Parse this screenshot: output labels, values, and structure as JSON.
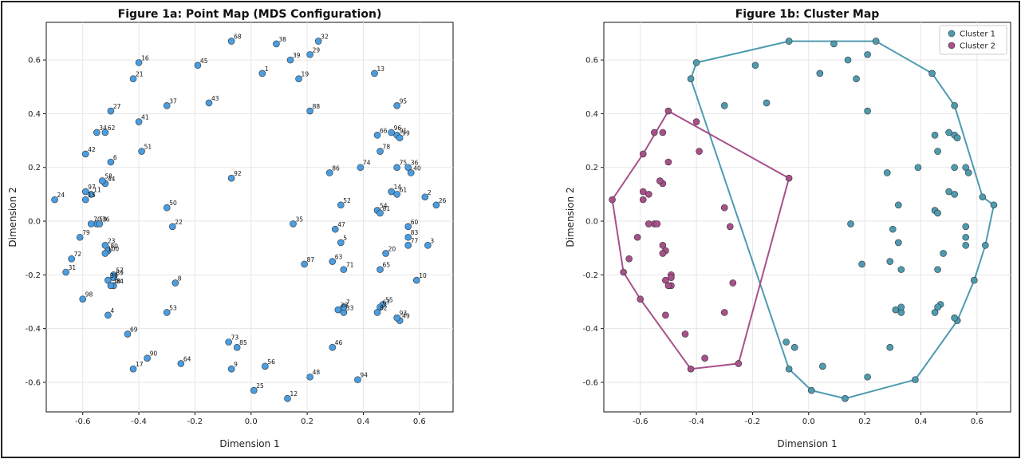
{
  "chart_data": [
    {
      "type": "scatter",
      "title": "Figure 1a: Point Map (MDS Configuration)",
      "xlabel": "Dimension 1",
      "ylabel": "Dimension 2",
      "xlim": [
        -0.73,
        0.72
      ],
      "ylim": [
        -0.71,
        0.74
      ],
      "xticks": [
        "-0.6",
        "-0.4",
        "-0.2",
        "0.0",
        "0.2",
        "0.4",
        "0.6"
      ],
      "yticks": [
        "-0.6",
        "-0.4",
        "-0.2",
        "0.0",
        "0.2",
        "0.4",
        "0.6"
      ],
      "grid": true,
      "point_color": "#4a9de0",
      "points": [
        {
          "label": "1",
          "x": 0.04,
          "y": 0.55
        },
        {
          "label": "2",
          "x": 0.62,
          "y": 0.09
        },
        {
          "label": "3",
          "x": 0.63,
          "y": -0.09
        },
        {
          "label": "4",
          "x": -0.51,
          "y": -0.35
        },
        {
          "label": "5",
          "x": 0.32,
          "y": -0.08
        },
        {
          "label": "6",
          "x": -0.5,
          "y": 0.22
        },
        {
          "label": "8",
          "x": -0.27,
          "y": -0.23
        },
        {
          "label": "9",
          "x": -0.07,
          "y": -0.55
        },
        {
          "label": "10",
          "x": 0.59,
          "y": -0.22
        },
        {
          "label": "12",
          "x": 0.13,
          "y": -0.66
        },
        {
          "label": "13",
          "x": 0.44,
          "y": 0.55
        },
        {
          "label": "14",
          "x": 0.5,
          "y": 0.11
        },
        {
          "label": "16",
          "x": -0.4,
          "y": 0.59
        },
        {
          "label": "17",
          "x": -0.42,
          "y": -0.55
        },
        {
          "label": "19",
          "x": 0.17,
          "y": 0.53
        },
        {
          "label": "20",
          "x": 0.48,
          "y": -0.12
        },
        {
          "label": "21",
          "x": -0.42,
          "y": 0.53
        },
        {
          "label": "22",
          "x": -0.28,
          "y": -0.02
        },
        {
          "label": "23",
          "x": -0.52,
          "y": -0.09
        },
        {
          "label": "24",
          "x": -0.7,
          "y": 0.08
        },
        {
          "label": "25",
          "x": 0.01,
          "y": -0.63
        },
        {
          "label": "26",
          "x": 0.66,
          "y": 0.06
        },
        {
          "label": "27",
          "x": -0.5,
          "y": 0.41
        },
        {
          "label": "29",
          "x": 0.21,
          "y": 0.62
        },
        {
          "label": "31",
          "x": -0.66,
          "y": -0.19
        },
        {
          "label": "32",
          "x": 0.24,
          "y": 0.67
        },
        {
          "label": "33",
          "x": 0.33,
          "y": -0.34
        },
        {
          "label": "34",
          "x": -0.55,
          "y": 0.33
        },
        {
          "label": "35",
          "x": 0.15,
          "y": -0.01
        },
        {
          "label": "36",
          "x": 0.56,
          "y": 0.2
        },
        {
          "label": "37",
          "x": -0.3,
          "y": 0.43
        },
        {
          "label": "38",
          "x": 0.09,
          "y": 0.66
        },
        {
          "label": "39",
          "x": 0.14,
          "y": 0.6
        },
        {
          "label": "40",
          "x": 0.57,
          "y": 0.18
        },
        {
          "label": "41",
          "x": -0.4,
          "y": 0.37
        },
        {
          "label": "42",
          "x": -0.59,
          "y": 0.25
        },
        {
          "label": "43",
          "x": -0.15,
          "y": 0.44
        },
        {
          "label": "44",
          "x": -0.52,
          "y": 0.14
        },
        {
          "label": "45",
          "x": -0.19,
          "y": 0.58
        },
        {
          "label": "46",
          "x": 0.29,
          "y": -0.47
        },
        {
          "label": "47",
          "x": 0.3,
          "y": -0.03
        },
        {
          "label": "48",
          "x": 0.21,
          "y": -0.58
        },
        {
          "label": "49",
          "x": 0.53,
          "y": -0.37
        },
        {
          "label": "50",
          "x": -0.3,
          "y": 0.05
        },
        {
          "label": "51",
          "x": -0.39,
          "y": 0.26
        },
        {
          "label": "52",
          "x": 0.32,
          "y": 0.06
        },
        {
          "label": "53",
          "x": -0.3,
          "y": -0.34
        },
        {
          "label": "54",
          "x": 0.45,
          "y": 0.04
        },
        {
          "label": "55",
          "x": 0.47,
          "y": -0.31
        },
        {
          "label": "56",
          "x": 0.05,
          "y": -0.54
        },
        {
          "label": "57",
          "x": -0.49,
          "y": -0.2
        },
        {
          "label": "58",
          "x": -0.53,
          "y": 0.15
        },
        {
          "label": "59",
          "x": -0.55,
          "y": -0.01
        },
        {
          "label": "60",
          "x": 0.56,
          "y": -0.02
        },
        {
          "label": "61",
          "x": 0.52,
          "y": 0.1
        },
        {
          "label": "62",
          "x": -0.52,
          "y": 0.33
        },
        {
          "label": "63",
          "x": 0.29,
          "y": -0.15
        },
        {
          "label": "64",
          "x": -0.25,
          "y": -0.53
        },
        {
          "label": "65",
          "x": 0.46,
          "y": -0.18
        },
        {
          "label": "66",
          "x": 0.45,
          "y": 0.32
        },
        {
          "label": "67",
          "x": 0.46,
          "y": -0.32
        },
        {
          "label": "68",
          "x": -0.07,
          "y": 0.67
        },
        {
          "label": "69",
          "x": -0.44,
          "y": -0.42
        },
        {
          "label": "70",
          "x": -0.57,
          "y": -0.01
        },
        {
          "label": "71",
          "x": 0.33,
          "y": -0.18
        },
        {
          "label": "72",
          "x": -0.64,
          "y": -0.14
        },
        {
          "label": "73",
          "x": -0.08,
          "y": -0.45
        },
        {
          "label": "74",
          "x": 0.39,
          "y": 0.2
        },
        {
          "label": "75",
          "x": 0.52,
          "y": 0.2
        },
        {
          "label": "76",
          "x": -0.54,
          "y": -0.01
        },
        {
          "label": "77",
          "x": 0.56,
          "y": -0.09
        },
        {
          "label": "78",
          "x": 0.46,
          "y": 0.26
        },
        {
          "label": "79",
          "x": -0.61,
          "y": -0.06
        },
        {
          "label": "81",
          "x": 0.46,
          "y": 0.03
        },
        {
          "label": "82",
          "x": 0.45,
          "y": -0.34
        },
        {
          "label": "83",
          "x": 0.56,
          "y": -0.06
        },
        {
          "label": "84",
          "x": -0.49,
          "y": -0.24
        },
        {
          "label": "85",
          "x": -0.05,
          "y": -0.47
        },
        {
          "label": "86",
          "x": 0.28,
          "y": 0.18
        },
        {
          "label": "87",
          "x": 0.19,
          "y": -0.16
        },
        {
          "label": "88",
          "x": 0.21,
          "y": 0.41
        },
        {
          "label": "89",
          "x": -0.49,
          "y": -0.21
        },
        {
          "label": "90",
          "x": -0.37,
          "y": -0.51
        },
        {
          "label": "91",
          "x": 0.52,
          "y": 0.32
        },
        {
          "label": "93",
          "x": 0.52,
          "y": -0.36
        },
        {
          "label": "94",
          "x": 0.38,
          "y": -0.59
        },
        {
          "label": "95",
          "x": 0.52,
          "y": 0.43
        },
        {
          "label": "96",
          "x": 0.5,
          "y": 0.33
        },
        {
          "label": "97",
          "x": -0.59,
          "y": 0.11
        },
        {
          "label": "98",
          "x": -0.6,
          "y": -0.29
        },
        {
          "label": "99",
          "x": 0.53,
          "y": 0.31
        },
        {
          "label": "92",
          "x": -0.07,
          "y": 0.16
        },
        {
          "label": "11",
          "x": -0.57,
          "y": 0.1
        },
        {
          "label": "15",
          "x": -0.59,
          "y": 0.08
        },
        {
          "label": "7",
          "x": 0.33,
          "y": -0.32
        },
        {
          "label": "28",
          "x": 0.31,
          "y": -0.33
        },
        {
          "label": "30",
          "x": -0.51,
          "y": -0.22
        },
        {
          "label": "18",
          "x": -0.5,
          "y": -0.24
        },
        {
          "label": "80",
          "x": -0.51,
          "y": -0.11
        },
        {
          "label": "100",
          "x": -0.52,
          "y": -0.12
        }
      ]
    },
    {
      "type": "scatter",
      "title": "Figure 1b: Cluster Map",
      "xlabel": "Dimension 1",
      "ylabel": "Dimension 2",
      "xlim": [
        -0.73,
        0.72
      ],
      "ylim": [
        -0.71,
        0.74
      ],
      "xticks": [
        "-0.6",
        "-0.4",
        "-0.2",
        "0.0",
        "0.2",
        "0.4",
        "0.6"
      ],
      "yticks": [
        "-0.6",
        "-0.4",
        "-0.2",
        "0.0",
        "0.2",
        "0.4",
        "0.6"
      ],
      "grid": true,
      "legend_position": "top-right",
      "series": [
        {
          "name": "Cluster 1",
          "color": "#4e9bb0",
          "points": [
            [
              0.04,
              0.55
            ],
            [
              0.62,
              0.09
            ],
            [
              0.63,
              -0.09
            ],
            [
              0.32,
              -0.08
            ],
            [
              0.59,
              -0.22
            ],
            [
              0.13,
              -0.66
            ],
            [
              0.44,
              0.55
            ],
            [
              0.5,
              0.11
            ],
            [
              -0.4,
              0.59
            ],
            [
              0.17,
              0.53
            ],
            [
              0.48,
              -0.12
            ],
            [
              -0.42,
              0.53
            ],
            [
              0.01,
              -0.63
            ],
            [
              0.66,
              0.06
            ],
            [
              0.21,
              0.62
            ],
            [
              0.24,
              0.67
            ],
            [
              0.33,
              -0.34
            ],
            [
              0.15,
              -0.01
            ],
            [
              0.56,
              0.2
            ],
            [
              -0.3,
              0.43
            ],
            [
              0.09,
              0.66
            ],
            [
              0.14,
              0.6
            ],
            [
              0.57,
              0.18
            ],
            [
              -0.15,
              0.44
            ],
            [
              -0.19,
              0.58
            ],
            [
              0.29,
              -0.47
            ],
            [
              0.3,
              -0.03
            ],
            [
              0.21,
              -0.58
            ],
            [
              0.53,
              -0.37
            ],
            [
              0.32,
              0.06
            ],
            [
              0.45,
              0.04
            ],
            [
              0.47,
              -0.31
            ],
            [
              0.05,
              -0.54
            ],
            [
              0.56,
              -0.02
            ],
            [
              0.52,
              0.1
            ],
            [
              0.29,
              -0.15
            ],
            [
              0.46,
              -0.18
            ],
            [
              0.45,
              0.32
            ],
            [
              0.46,
              -0.32
            ],
            [
              -0.07,
              0.67
            ],
            [
              0.33,
              -0.18
            ],
            [
              -0.08,
              -0.45
            ],
            [
              0.39,
              0.2
            ],
            [
              0.52,
              0.2
            ],
            [
              0.56,
              -0.09
            ],
            [
              0.46,
              0.26
            ],
            [
              0.46,
              0.03
            ],
            [
              0.45,
              -0.34
            ],
            [
              0.56,
              -0.06
            ],
            [
              -0.05,
              -0.47
            ],
            [
              0.28,
              0.18
            ],
            [
              0.19,
              -0.16
            ],
            [
              0.21,
              0.41
            ],
            [
              0.52,
              0.32
            ],
            [
              0.52,
              -0.36
            ],
            [
              0.38,
              -0.59
            ],
            [
              0.52,
              0.43
            ],
            [
              0.5,
              0.33
            ],
            [
              0.53,
              0.31
            ],
            [
              -0.07,
              -0.55
            ],
            [
              0.33,
              -0.32
            ],
            [
              0.31,
              -0.33
            ]
          ],
          "hull": [
            [
              -0.42,
              0.53
            ],
            [
              -0.4,
              0.59
            ],
            [
              -0.07,
              0.67
            ],
            [
              0.24,
              0.67
            ],
            [
              0.44,
              0.55
            ],
            [
              0.52,
              0.43
            ],
            [
              0.62,
              0.09
            ],
            [
              0.66,
              0.06
            ],
            [
              0.63,
              -0.09
            ],
            [
              0.59,
              -0.22
            ],
            [
              0.53,
              -0.37
            ],
            [
              0.38,
              -0.59
            ],
            [
              0.13,
              -0.66
            ],
            [
              0.01,
              -0.63
            ],
            [
              -0.07,
              -0.55
            ]
          ]
        },
        {
          "name": "Cluster 2",
          "color": "#a8508a",
          "points": [
            [
              -0.51,
              -0.35
            ],
            [
              -0.5,
              0.22
            ],
            [
              -0.27,
              -0.23
            ],
            [
              -0.42,
              -0.55
            ],
            [
              -0.28,
              -0.02
            ],
            [
              -0.52,
              -0.09
            ],
            [
              -0.7,
              0.08
            ],
            [
              -0.5,
              0.41
            ],
            [
              -0.66,
              -0.19
            ],
            [
              -0.55,
              0.33
            ],
            [
              -0.4,
              0.37
            ],
            [
              -0.59,
              0.25
            ],
            [
              -0.52,
              0.14
            ],
            [
              -0.3,
              0.05
            ],
            [
              -0.39,
              0.26
            ],
            [
              -0.3,
              -0.34
            ],
            [
              -0.49,
              -0.2
            ],
            [
              -0.53,
              0.15
            ],
            [
              -0.55,
              -0.01
            ],
            [
              -0.52,
              0.33
            ],
            [
              -0.25,
              -0.53
            ],
            [
              -0.44,
              -0.42
            ],
            [
              -0.57,
              -0.01
            ],
            [
              -0.64,
              -0.14
            ],
            [
              -0.54,
              -0.01
            ],
            [
              -0.61,
              -0.06
            ],
            [
              -0.49,
              -0.24
            ],
            [
              -0.49,
              -0.21
            ],
            [
              -0.37,
              -0.51
            ],
            [
              -0.59,
              0.11
            ],
            [
              -0.6,
              -0.29
            ],
            [
              -0.07,
              0.16
            ],
            [
              -0.57,
              0.1
            ],
            [
              -0.59,
              0.08
            ],
            [
              -0.51,
              -0.22
            ],
            [
              -0.5,
              -0.24
            ],
            [
              -0.51,
              -0.11
            ],
            [
              -0.52,
              -0.12
            ]
          ],
          "hull": [
            [
              -0.7,
              0.08
            ],
            [
              -0.59,
              0.25
            ],
            [
              -0.5,
              0.41
            ],
            [
              -0.07,
              0.16
            ],
            [
              -0.25,
              -0.53
            ],
            [
              -0.42,
              -0.55
            ],
            [
              -0.6,
              -0.29
            ],
            [
              -0.66,
              -0.19
            ]
          ]
        }
      ]
    }
  ]
}
